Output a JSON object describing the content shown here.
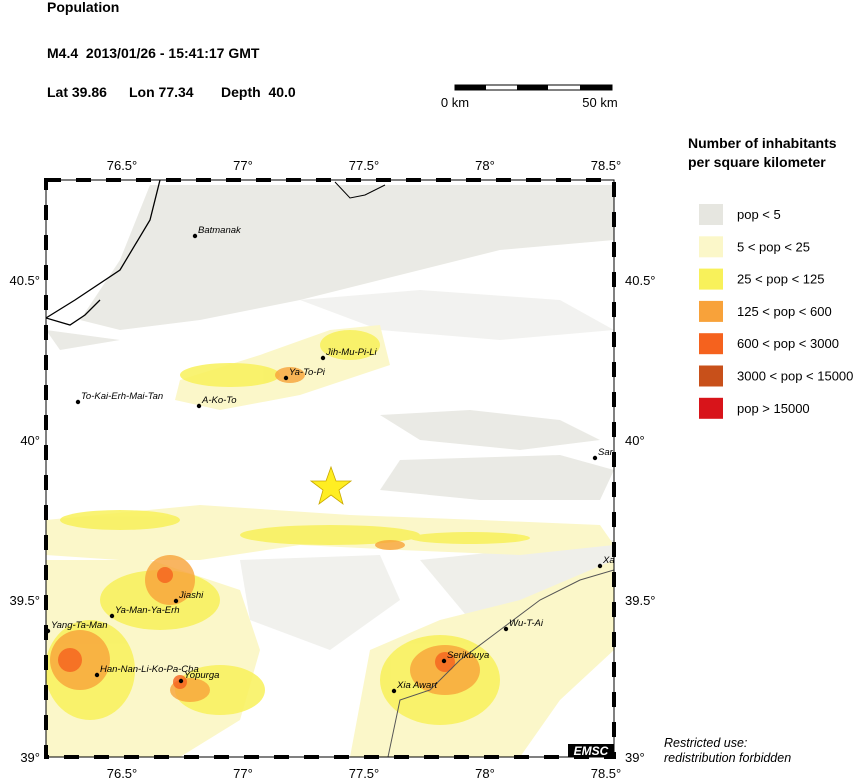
{
  "header": {
    "title": "Population",
    "event": "M4.4  2013/01/26 - 15:41:17 GMT",
    "lat": "Lat 39.86",
    "lon": "Lon 77.34",
    "depth": "Depth  40.0"
  },
  "scale_bar": {
    "start": "0 km",
    "end": "50 km"
  },
  "map": {
    "lon_ticks": [
      "76.5°",
      "77°",
      "77.5°",
      "78°",
      "78.5°"
    ],
    "lat_ticks": [
      "40.5°",
      "40°",
      "39.5°",
      "39°"
    ],
    "places": [
      "Batmanak",
      "Jih-Mu-Pi-Li",
      "Ya-To-Pi",
      "To-Kai-Erh-Mai-Tan",
      "A-Ko-To",
      "Sar",
      "Xa",
      "Jiashi",
      "Ya-Man-Ya-Erh",
      "Yang-Ta-Man",
      "Wu-T-Ai",
      "Serikbuya",
      "Han-Nan-Li-Ko-Pa-Cha",
      "Yopurga",
      "Xia Awart"
    ],
    "credit": "EMSC"
  },
  "legend": {
    "title_lines": [
      "Number of inhabitants",
      "per square kilometer"
    ],
    "items": [
      {
        "label": "pop < 5",
        "color": "#e6e6e0"
      },
      {
        "label": "5 < pop < 25",
        "color": "#fbf7c9"
      },
      {
        "label": "25 < pop < 125",
        "color": "#f8f15a"
      },
      {
        "label": "125 < pop < 600",
        "color": "#f8a23a"
      },
      {
        "label": "600 < pop < 3000",
        "color": "#f5621e"
      },
      {
        "label": "3000 < pop < 15000",
        "color": "#c8501a"
      },
      {
        "label": "pop > 15000",
        "color": "#d8141a"
      }
    ]
  },
  "notice": [
    "Restricted use:",
    "redistribution forbidden"
  ]
}
